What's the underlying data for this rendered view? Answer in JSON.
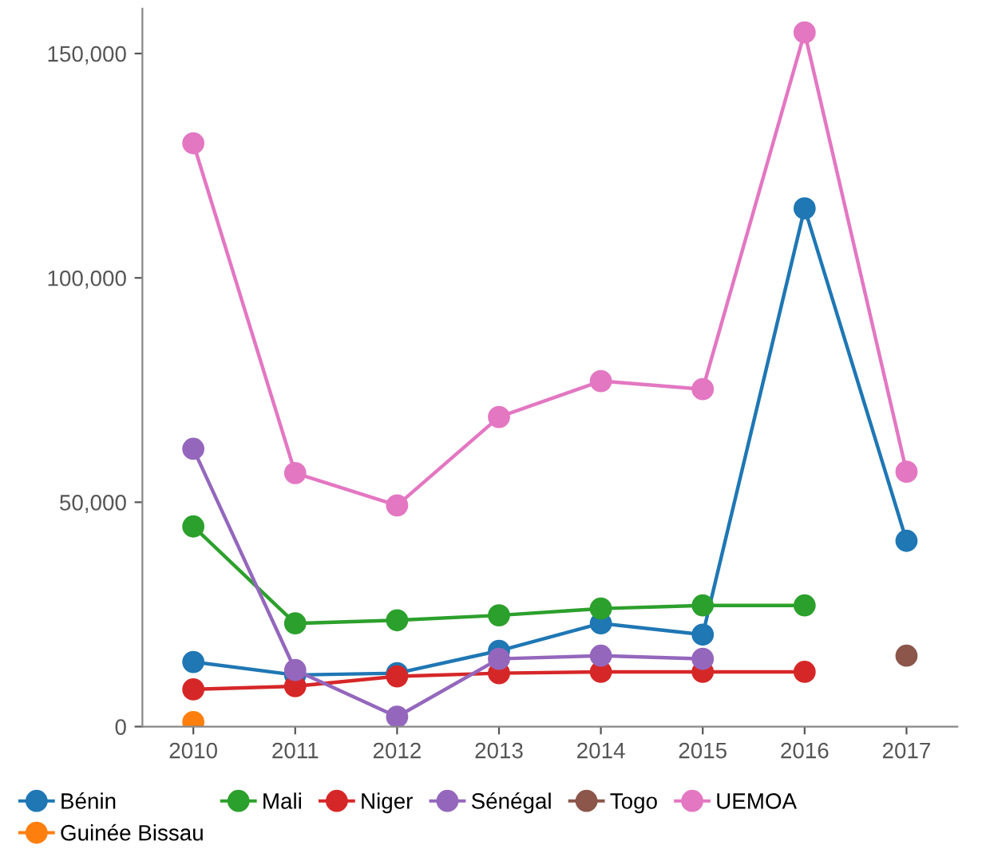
{
  "chart_data": {
    "type": "line",
    "categories": [
      "2010",
      "2011",
      "2012",
      "2013",
      "2014",
      "2015",
      "2016",
      "2017"
    ],
    "series": [
      {
        "name": "Bénin",
        "color": "#1f77b4",
        "values": [
          14400,
          11500,
          11900,
          16900,
          23000,
          20500,
          115500,
          41400
        ]
      },
      {
        "name": "Guinée Bissau",
        "color": "#ff7f0e",
        "values": [
          1000,
          null,
          null,
          null,
          null,
          null,
          null,
          null
        ]
      },
      {
        "name": "Mali",
        "color": "#2ca02c",
        "values": [
          44600,
          23000,
          23700,
          24800,
          26300,
          27000,
          27000,
          null
        ]
      },
      {
        "name": "Niger",
        "color": "#d62728",
        "values": [
          8300,
          9000,
          11200,
          11900,
          12200,
          12200,
          12200,
          null
        ]
      },
      {
        "name": "Sénégal",
        "color": "#9467bd",
        "values": [
          61900,
          12600,
          2200,
          15100,
          15800,
          15100,
          null,
          null
        ]
      },
      {
        "name": "Togo",
        "color": "#8c564b",
        "values": [
          null,
          null,
          null,
          null,
          null,
          null,
          null,
          15800
        ]
      },
      {
        "name": "UEMOA",
        "color": "#e377c2",
        "values": [
          130000,
          56500,
          49300,
          69000,
          77000,
          75200,
          154700,
          56800
        ]
      }
    ],
    "ylim": [
      0,
      160000
    ],
    "yticks": [
      {
        "value": 0,
        "label": "0"
      },
      {
        "value": 50000,
        "label": "50,000"
      },
      {
        "value": 100000,
        "label": "100,000"
      },
      {
        "value": 150000,
        "label": "150,000"
      }
    ],
    "grid": false,
    "legend": "bottom",
    "marker": "circle",
    "line_style": "solid"
  }
}
